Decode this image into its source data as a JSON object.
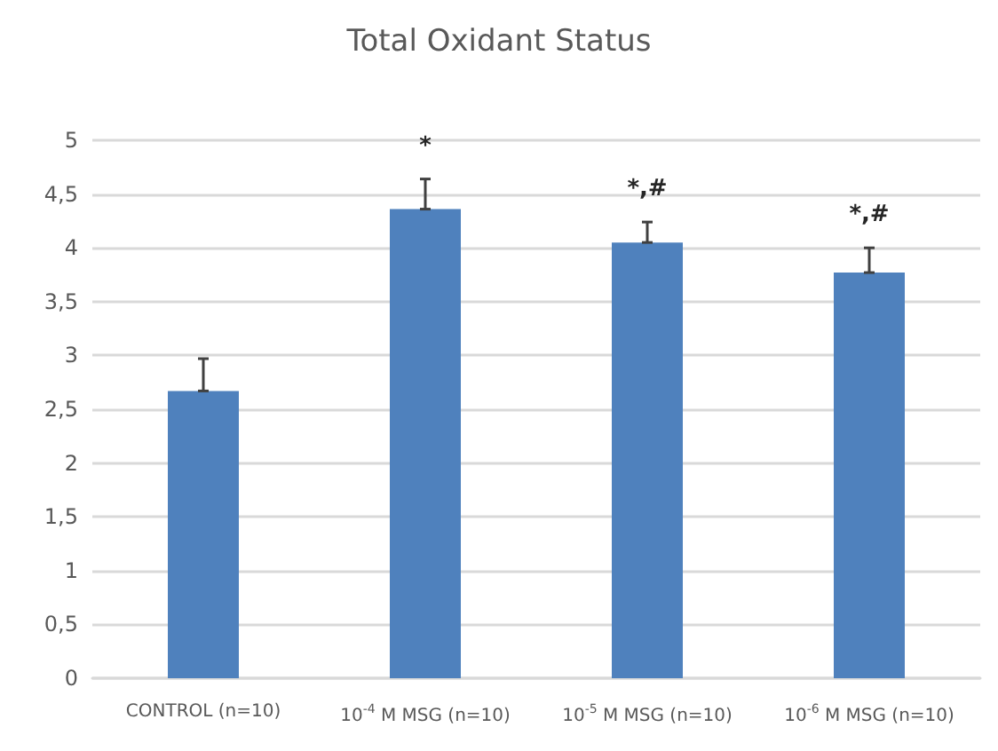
{
  "chart_data": {
    "type": "bar",
    "title": "Total Oxidant Status",
    "categories": [
      "CONTROL (n=10)",
      "10$^{-4}$ M MSG (n=10)",
      "10$^{-5}$ M MSG (n=10)",
      "10$^{-6}$ M MSG (n=10)"
    ],
    "values": [
      2.67,
      4.36,
      4.05,
      3.77
    ],
    "color": "#4f81bd",
    "errors": [
      [
        2.67,
        2.97
      ],
      [
        4.36,
        4.64
      ],
      [
        4.05,
        4.24
      ],
      [
        3.77,
        4.0
      ]
    ],
    "ylim": [
      0,
      5
    ],
    "yticks": [
      0,
      {
        "value": 0.5,
        "label": "0,5"
      },
      1,
      {
        "value": 1.5,
        "label": "1,5"
      },
      2,
      {
        "value": 2.5,
        "label": "2,5"
      },
      3,
      {
        "value": 3.5,
        "label": "3,5"
      },
      4,
      {
        "value": 4.5,
        "label": "4,5"
      },
      5
    ],
    "grid": "y",
    "annotations": [
      "*",
      "*,#",
      "*,#"
    ]
  }
}
